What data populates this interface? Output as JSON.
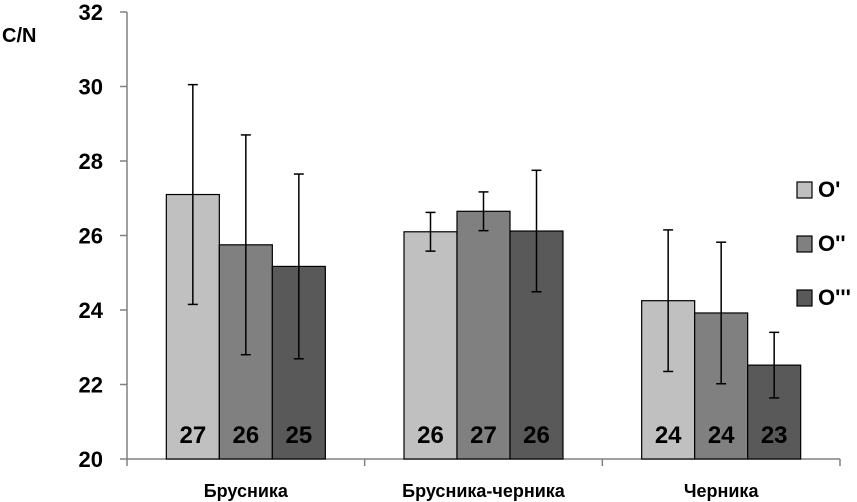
{
  "chart_data": {
    "type": "bar",
    "ylabel": "C/N",
    "xlabel": "",
    "ylim": [
      20,
      32
    ],
    "yticks": [
      "20",
      "22",
      "24",
      "26",
      "28",
      "30",
      "32"
    ],
    "categories": [
      "Брусника",
      "Брусника-черника",
      "Черника"
    ],
    "series": [
      {
        "name": "O'",
        "color": "#c0c0c0",
        "values": [
          27.1,
          26.1,
          24.25
        ],
        "errors": [
          2.95,
          0.52,
          1.9
        ],
        "labels": [
          "27",
          "26",
          "24"
        ]
      },
      {
        "name": "O''",
        "color": "#808080",
        "values": [
          25.75,
          26.65,
          23.92
        ],
        "errors": [
          2.95,
          0.52,
          1.9
        ],
        "labels": [
          "26",
          "27",
          "24"
        ]
      },
      {
        "name": "O'''",
        "color": "#595959",
        "values": [
          25.17,
          26.12,
          22.52
        ],
        "errors": [
          2.48,
          1.63,
          0.88
        ],
        "labels": [
          "25",
          "26",
          "23"
        ]
      }
    ],
    "legend": "right",
    "grid": false
  }
}
